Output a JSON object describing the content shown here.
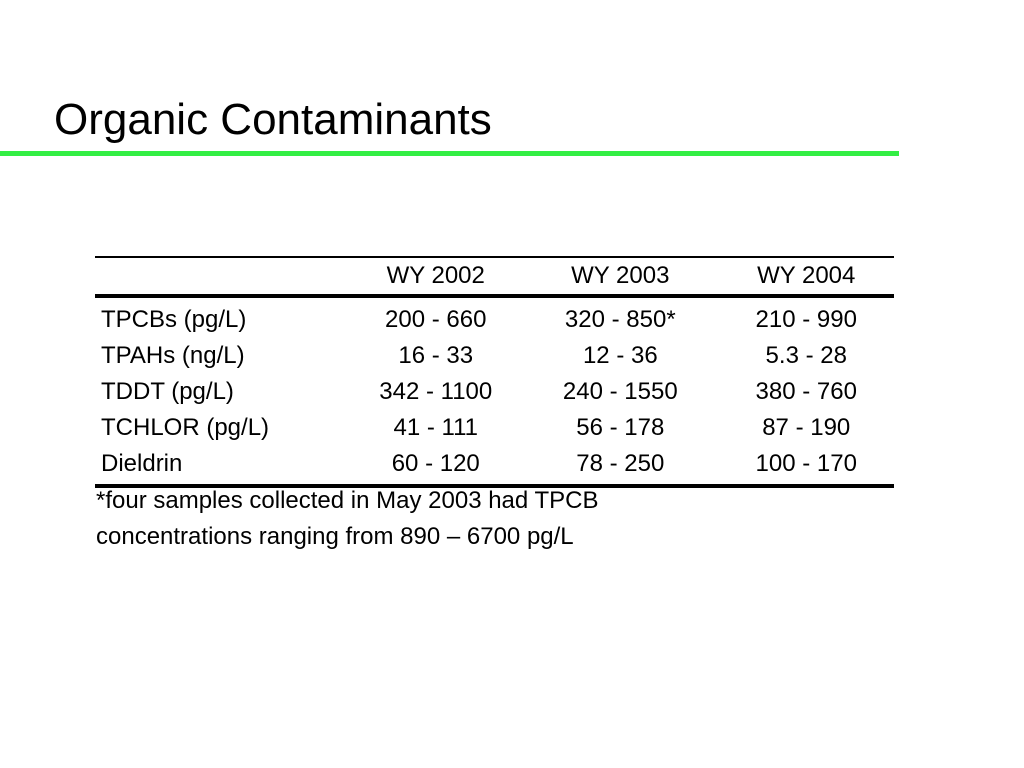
{
  "slide": {
    "title": "Organic Contaminants",
    "accent_color": "#33ee44"
  },
  "table": {
    "columns": [
      "",
      "WY 2002",
      "WY 2003",
      "WY 2004"
    ],
    "rows": [
      {
        "label": "TPCBs (pg/L)",
        "values": [
          "200 - 660",
          "320 - 850*",
          "210 - 990"
        ]
      },
      {
        "label": "TPAHs (ng/L)",
        "values": [
          "16 - 33",
          "12 - 36",
          "5.3 - 28"
        ]
      },
      {
        "label": "TDDT (pg/L)",
        "values": [
          "342 - 1100",
          "240 - 1550",
          "380 - 760"
        ]
      },
      {
        "label": "TCHLOR (pg/L)",
        "values": [
          "41 - 111",
          "56 - 178",
          "87 - 190"
        ]
      },
      {
        "label": "Dieldrin",
        "values": [
          "60 - 120",
          "78 - 250",
          "100 - 170"
        ]
      }
    ]
  },
  "footnote": {
    "line1": "*four samples collected in May 2003 had TPCB",
    "line2": "concentrations ranging from 890 – 6700 pg/L"
  }
}
